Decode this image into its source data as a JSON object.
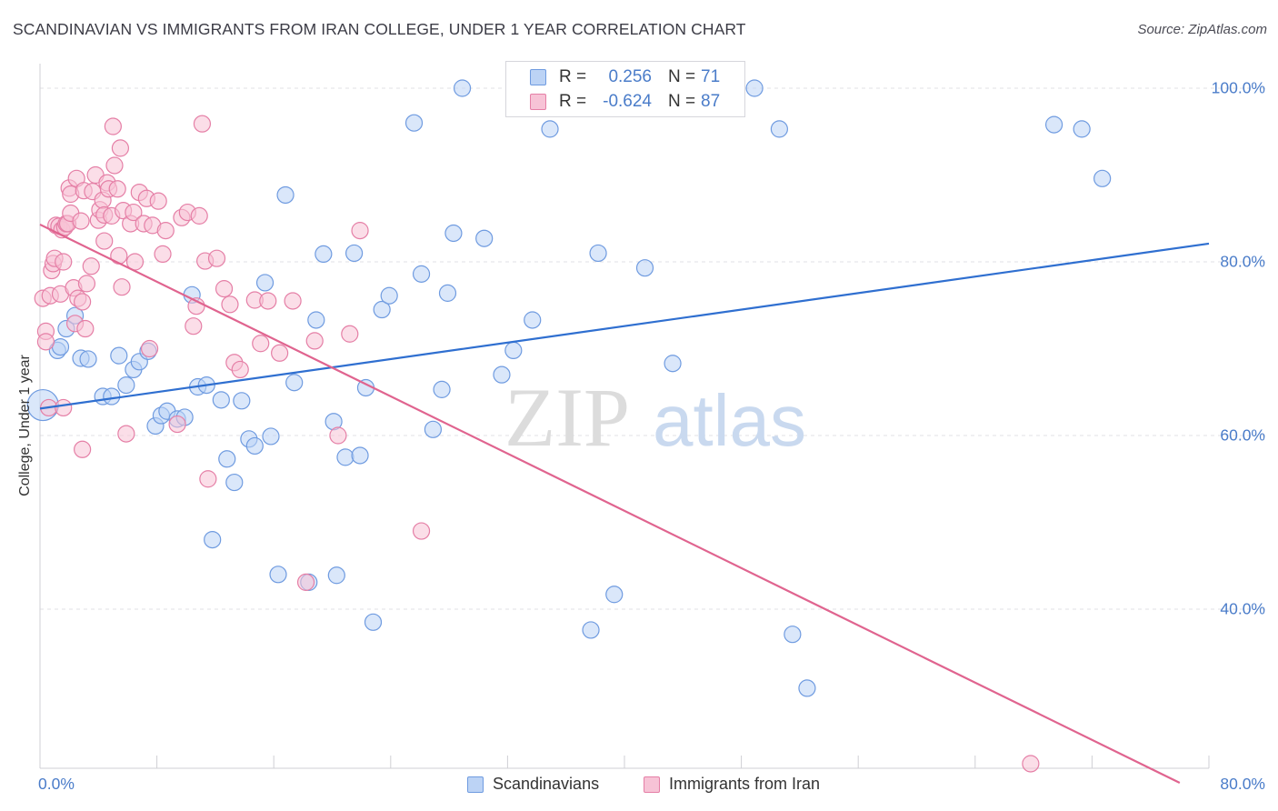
{
  "title": "SCANDINAVIAN VS IMMIGRANTS FROM IRAN COLLEGE, UNDER 1 YEAR CORRELATION CHART",
  "source": "Source: ZipAtlas.com",
  "watermark": {
    "zip": "ZIP",
    "atlas": "atlas"
  },
  "stats": [
    {
      "r_label": "R =",
      "r_value": "0.256",
      "n_label": "N =",
      "n_value": "71",
      "color": "#6f9be0",
      "fill": "#bcd3f5"
    },
    {
      "r_label": "R =",
      "r_value": "-0.624",
      "n_label": "N =",
      "n_value": "87",
      "color": "#e57fa6",
      "fill": "#f7c3d6"
    }
  ],
  "legend": [
    {
      "label": "Scandinavians",
      "color": "#6f9be0",
      "fill": "#bcd3f5"
    },
    {
      "label": "Immigrants from Iran",
      "color": "#e57fa6",
      "fill": "#f7c3d6"
    }
  ],
  "chart_data": {
    "type": "scatter",
    "title": "SCANDINAVIAN VS IMMIGRANTS FROM IRAN COLLEGE, UNDER 1 YEAR CORRELATION CHART",
    "xlabel": "",
    "ylabel": "College, Under 1 year",
    "xlim": [
      0,
      80
    ],
    "ylim": [
      20,
      102
    ],
    "x_tick_labels": [
      "0.0%",
      "80.0%"
    ],
    "y_ticks": [
      40,
      60,
      80,
      100
    ],
    "y_tick_labels": [
      "40.0%",
      "60.0%",
      "80.0%",
      "100.0%"
    ],
    "grid": true,
    "legend_position": "bottom-center",
    "series": [
      {
        "name": "Scandinavians",
        "color": "#6f9be0",
        "fill": "#bcd3f5",
        "trend": {
          "x": [
            0,
            80
          ],
          "y": [
            63.1,
            82.1
          ]
        },
        "points": [
          [
            0.2,
            63.5
          ],
          [
            1.2,
            69.8
          ],
          [
            1.4,
            70.2
          ],
          [
            1.8,
            72.3
          ],
          [
            2.4,
            73.8
          ],
          [
            2.8,
            68.9
          ],
          [
            3.3,
            68.8
          ],
          [
            4.3,
            64.5
          ],
          [
            4.9,
            64.5
          ],
          [
            5.4,
            69.2
          ],
          [
            5.9,
            65.8
          ],
          [
            6.4,
            67.6
          ],
          [
            6.8,
            68.5
          ],
          [
            7.4,
            69.7
          ],
          [
            7.9,
            61.1
          ],
          [
            8.3,
            62.3
          ],
          [
            8.7,
            62.8
          ],
          [
            9.4,
            61.9
          ],
          [
            9.9,
            62.1
          ],
          [
            10.4,
            76.2
          ],
          [
            10.8,
            65.6
          ],
          [
            11.4,
            65.8
          ],
          [
            11.8,
            48.0
          ],
          [
            12.4,
            64.1
          ],
          [
            12.8,
            57.3
          ],
          [
            13.3,
            54.6
          ],
          [
            13.8,
            64.0
          ],
          [
            14.3,
            59.6
          ],
          [
            14.7,
            58.8
          ],
          [
            15.4,
            77.6
          ],
          [
            15.8,
            59.9
          ],
          [
            16.3,
            44.0
          ],
          [
            16.8,
            87.7
          ],
          [
            17.4,
            66.1
          ],
          [
            18.4,
            43.1
          ],
          [
            18.9,
            73.3
          ],
          [
            19.4,
            80.9
          ],
          [
            20.1,
            61.6
          ],
          [
            20.3,
            43.9
          ],
          [
            20.9,
            57.5
          ],
          [
            21.5,
            81.0
          ],
          [
            21.9,
            57.7
          ],
          [
            22.3,
            65.5
          ],
          [
            22.8,
            38.5
          ],
          [
            23.4,
            74.5
          ],
          [
            23.9,
            76.1
          ],
          [
            25.6,
            96.0
          ],
          [
            26.1,
            78.6
          ],
          [
            26.9,
            60.7
          ],
          [
            27.5,
            65.3
          ],
          [
            27.9,
            76.4
          ],
          [
            28.3,
            83.3
          ],
          [
            28.9,
            100.0
          ],
          [
            30.4,
            82.7
          ],
          [
            31.6,
            67.0
          ],
          [
            32.4,
            69.8
          ],
          [
            33.7,
            73.3
          ],
          [
            34.9,
            95.3
          ],
          [
            37.7,
            37.6
          ],
          [
            38.2,
            81.0
          ],
          [
            39.3,
            41.7
          ],
          [
            41.4,
            79.3
          ],
          [
            43.3,
            68.3
          ],
          [
            48.9,
            100.0
          ],
          [
            50.6,
            95.3
          ],
          [
            51.5,
            37.1
          ],
          [
            52.5,
            30.9
          ],
          [
            69.4,
            95.8
          ],
          [
            71.3,
            95.3
          ],
          [
            72.7,
            89.6
          ]
        ]
      },
      {
        "name": "Immigrants from Iran",
        "color": "#e57fa6",
        "fill": "#f7c3d6",
        "trend": {
          "x": [
            0,
            78
          ],
          "y": [
            84.3,
            20
          ]
        },
        "points": [
          [
            0.2,
            75.8
          ],
          [
            0.4,
            72.0
          ],
          [
            0.4,
            70.8
          ],
          [
            0.6,
            63.2
          ],
          [
            0.7,
            76.1
          ],
          [
            0.8,
            79.0
          ],
          [
            0.9,
            79.8
          ],
          [
            1.0,
            80.4
          ],
          [
            1.1,
            84.2
          ],
          [
            1.3,
            84.1
          ],
          [
            1.4,
            76.3
          ],
          [
            1.5,
            83.7
          ],
          [
            1.6,
            80.0
          ],
          [
            1.6,
            63.2
          ],
          [
            1.7,
            84.0
          ],
          [
            1.8,
            84.4
          ],
          [
            1.9,
            84.4
          ],
          [
            2.0,
            88.5
          ],
          [
            2.1,
            85.6
          ],
          [
            2.1,
            87.8
          ],
          [
            2.3,
            77.0
          ],
          [
            2.4,
            72.9
          ],
          [
            2.5,
            89.6
          ],
          [
            2.6,
            75.8
          ],
          [
            2.8,
            84.7
          ],
          [
            2.9,
            58.4
          ],
          [
            2.9,
            75.4
          ],
          [
            3.0,
            88.2
          ],
          [
            3.1,
            72.3
          ],
          [
            3.2,
            77.5
          ],
          [
            3.5,
            79.5
          ],
          [
            3.6,
            88.1
          ],
          [
            3.8,
            90.0
          ],
          [
            4.0,
            84.8
          ],
          [
            4.1,
            86.0
          ],
          [
            4.3,
            87.1
          ],
          [
            4.4,
            85.4
          ],
          [
            4.4,
            82.4
          ],
          [
            4.6,
            89.1
          ],
          [
            4.7,
            88.4
          ],
          [
            4.9,
            85.3
          ],
          [
            5.0,
            95.6
          ],
          [
            5.1,
            91.1
          ],
          [
            5.3,
            88.4
          ],
          [
            5.4,
            80.7
          ],
          [
            5.5,
            93.1
          ],
          [
            5.6,
            77.1
          ],
          [
            5.7,
            85.9
          ],
          [
            5.9,
            60.2
          ],
          [
            6.2,
            84.4
          ],
          [
            6.4,
            85.7
          ],
          [
            6.5,
            80.0
          ],
          [
            6.8,
            88.0
          ],
          [
            7.1,
            84.4
          ],
          [
            7.3,
            87.3
          ],
          [
            7.5,
            70.0
          ],
          [
            7.7,
            84.2
          ],
          [
            8.1,
            87.0
          ],
          [
            8.4,
            80.9
          ],
          [
            8.6,
            83.6
          ],
          [
            9.4,
            61.3
          ],
          [
            9.7,
            85.1
          ],
          [
            10.1,
            85.7
          ],
          [
            10.5,
            72.6
          ],
          [
            10.7,
            74.9
          ],
          [
            10.9,
            85.3
          ],
          [
            11.1,
            95.9
          ],
          [
            11.3,
            80.1
          ],
          [
            11.5,
            55.0
          ],
          [
            12.1,
            80.4
          ],
          [
            12.6,
            76.9
          ],
          [
            13.0,
            75.1
          ],
          [
            13.3,
            68.4
          ],
          [
            13.7,
            67.6
          ],
          [
            14.7,
            75.6
          ],
          [
            15.1,
            70.6
          ],
          [
            15.6,
            75.5
          ],
          [
            16.4,
            69.5
          ],
          [
            17.3,
            75.5
          ],
          [
            18.2,
            43.1
          ],
          [
            18.8,
            70.9
          ],
          [
            20.4,
            60.0
          ],
          [
            21.2,
            71.7
          ],
          [
            21.9,
            83.6
          ],
          [
            26.1,
            49.0
          ],
          [
            67.8,
            22.2
          ]
        ]
      }
    ]
  }
}
